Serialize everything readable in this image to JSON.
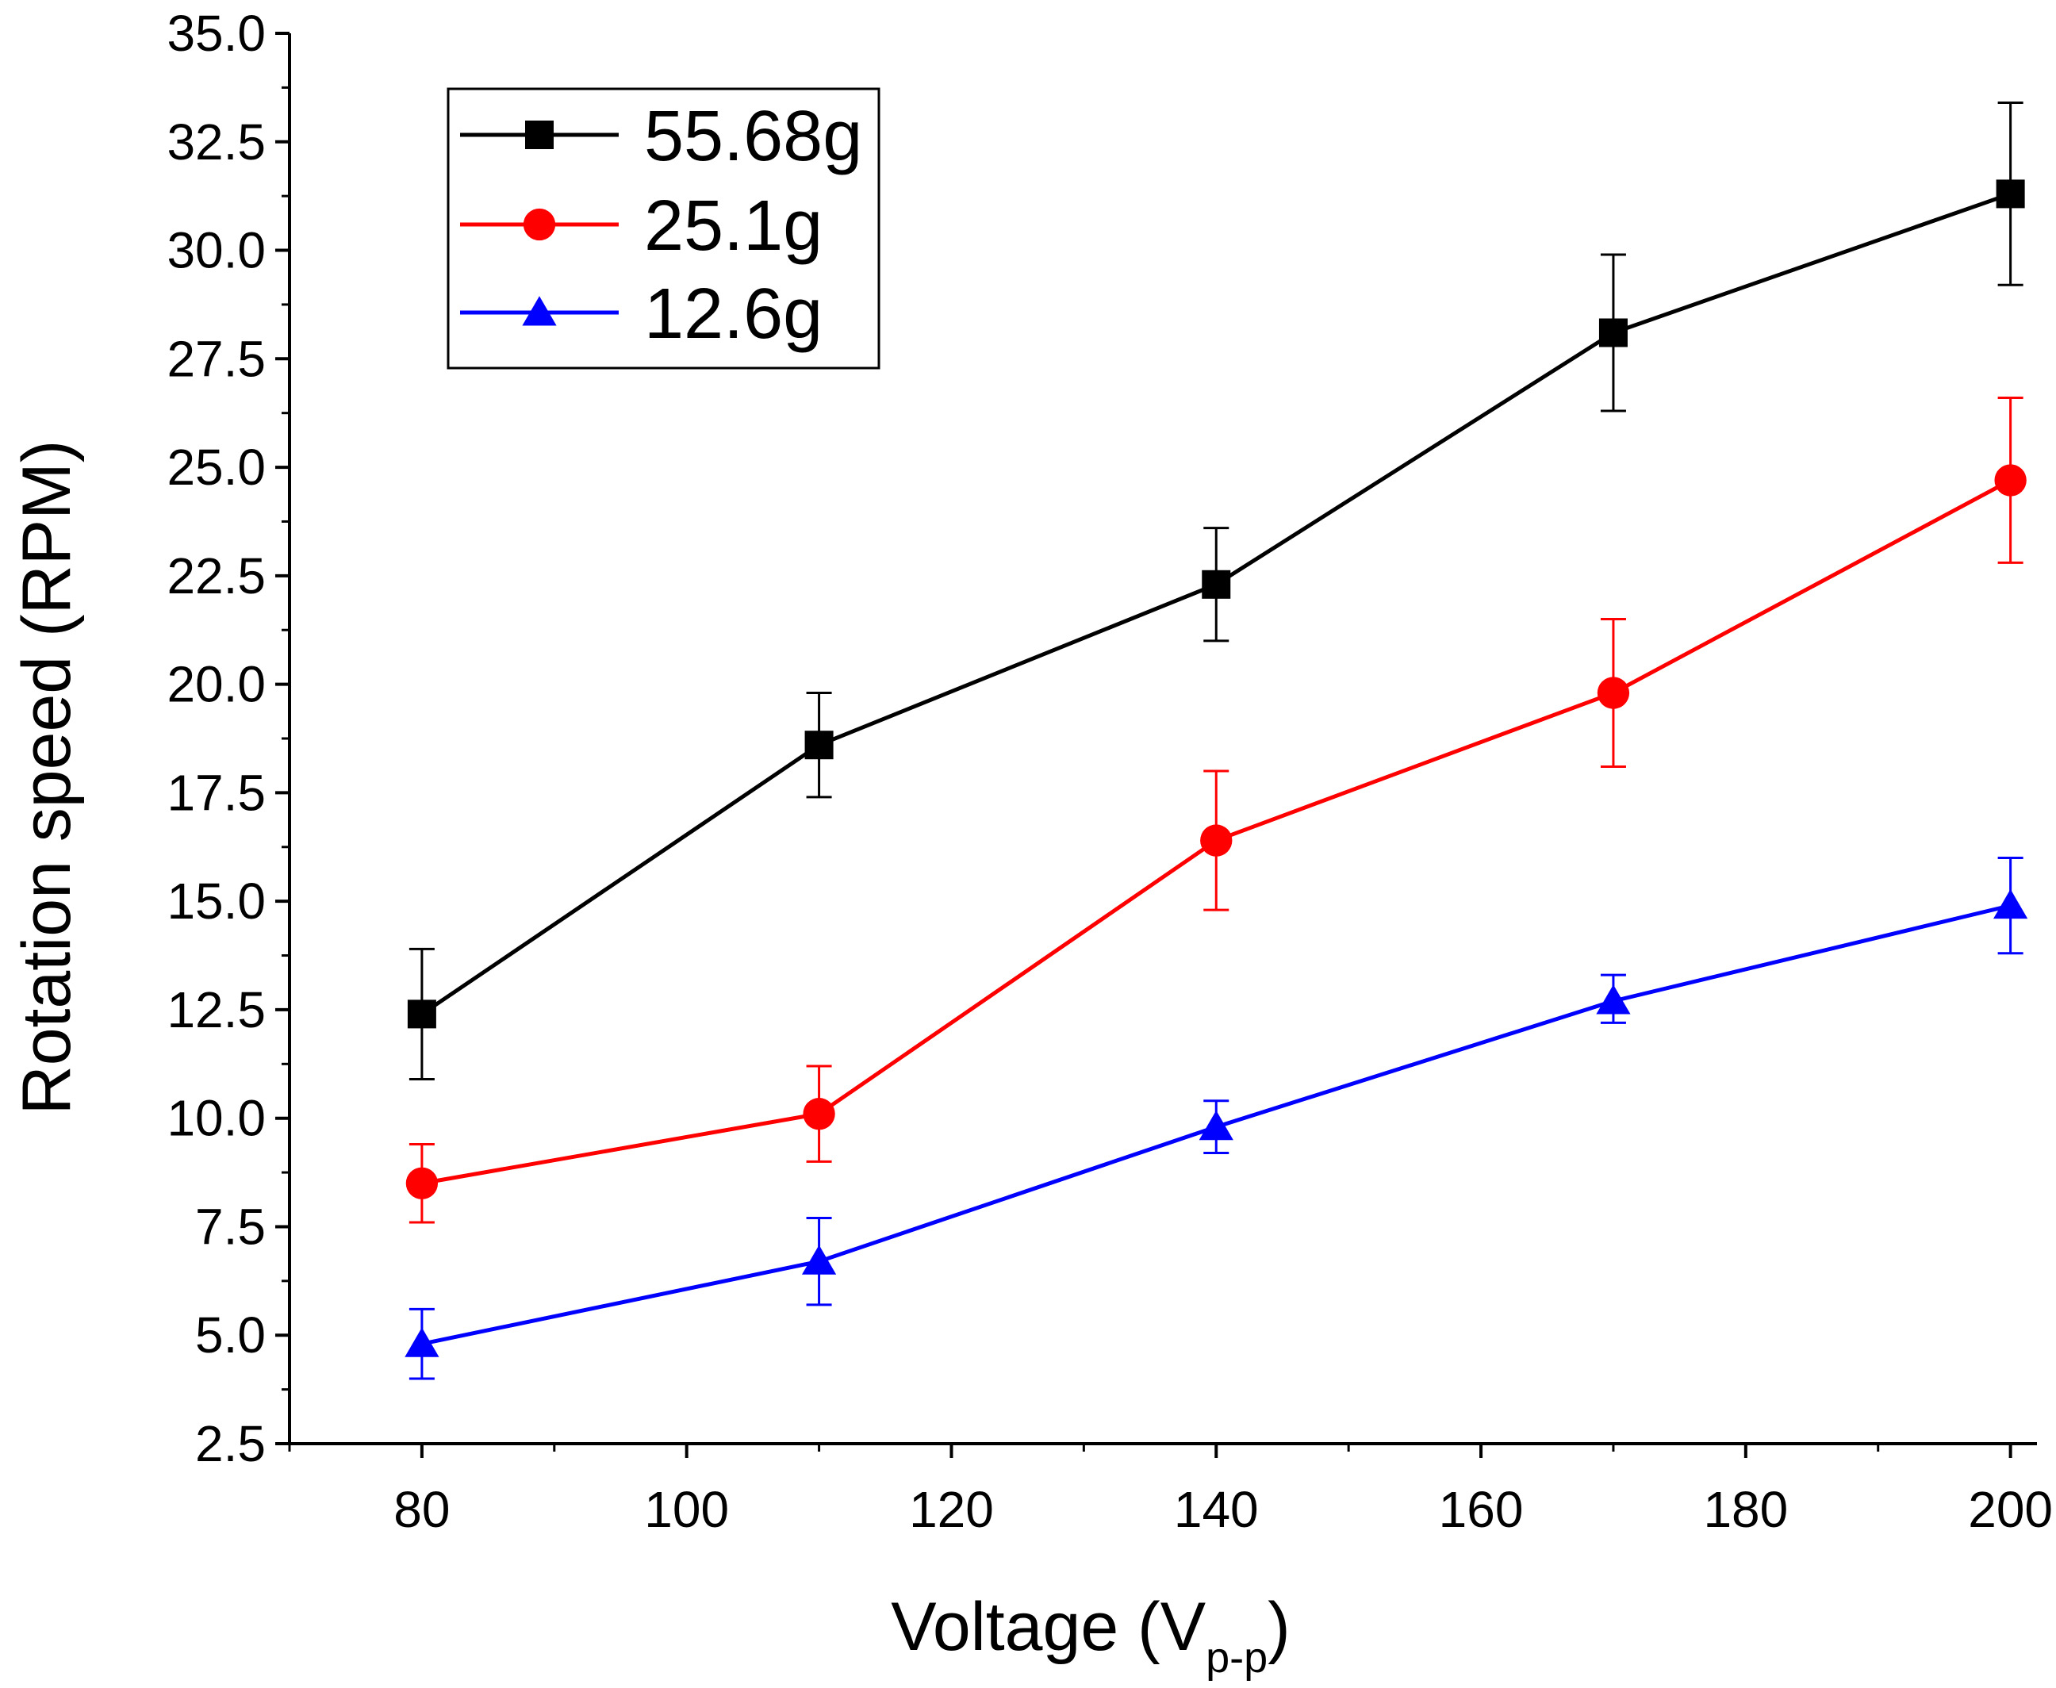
{
  "chart_data": {
    "type": "line",
    "title": "",
    "xlabel": "Voltage (V",
    "xlabel_sub": "p-p",
    "xlabel_close": ")",
    "ylabel": "Rotation speed (RPM)",
    "xlim": [
      70,
      202
    ],
    "ylim": [
      2.5,
      35.0
    ],
    "x_ticks": [
      80,
      100,
      120,
      140,
      160,
      180,
      200
    ],
    "x_tick_labels": [
      "80",
      "100",
      "120",
      "140",
      "160",
      "180",
      "200"
    ],
    "y_ticks": [
      2.5,
      5.0,
      7.5,
      10.0,
      12.5,
      15.0,
      17.5,
      20.0,
      22.5,
      25.0,
      27.5,
      30.0,
      32.5,
      35.0
    ],
    "y_tick_labels": [
      "2.5",
      "5.0",
      "7.5",
      "10.0",
      "12.5",
      "15.0",
      "17.5",
      "20.0",
      "22.5",
      "25.0",
      "27.5",
      "30.0",
      "32.5",
      "35.0"
    ],
    "grid": false,
    "legend_position": "top-left",
    "x": [
      80,
      110,
      140,
      170,
      200
    ],
    "series": [
      {
        "name": "55.68g",
        "color": "#000000",
        "marker": "square",
        "values": [
          12.4,
          18.6,
          22.3,
          28.1,
          31.3
        ],
        "err_low": [
          10.9,
          17.4,
          21.0,
          26.3,
          29.2
        ],
        "err_high": [
          13.9,
          19.8,
          23.6,
          29.9,
          33.4
        ]
      },
      {
        "name": "25.1g",
        "color": "#ff0000",
        "marker": "circle",
        "values": [
          8.5,
          10.1,
          16.4,
          19.8,
          24.7
        ],
        "err_low": [
          7.6,
          9.0,
          14.8,
          18.1,
          22.8
        ],
        "err_high": [
          9.4,
          11.2,
          18.0,
          21.5,
          26.6
        ]
      },
      {
        "name": "12.6g",
        "color": "#0000ff",
        "marker": "triangle",
        "values": [
          4.8,
          6.7,
          9.8,
          12.7,
          14.9
        ],
        "err_low": [
          4.0,
          5.7,
          9.2,
          12.2,
          13.8
        ],
        "err_high": [
          5.6,
          7.7,
          10.4,
          13.3,
          16.0
        ]
      }
    ]
  }
}
